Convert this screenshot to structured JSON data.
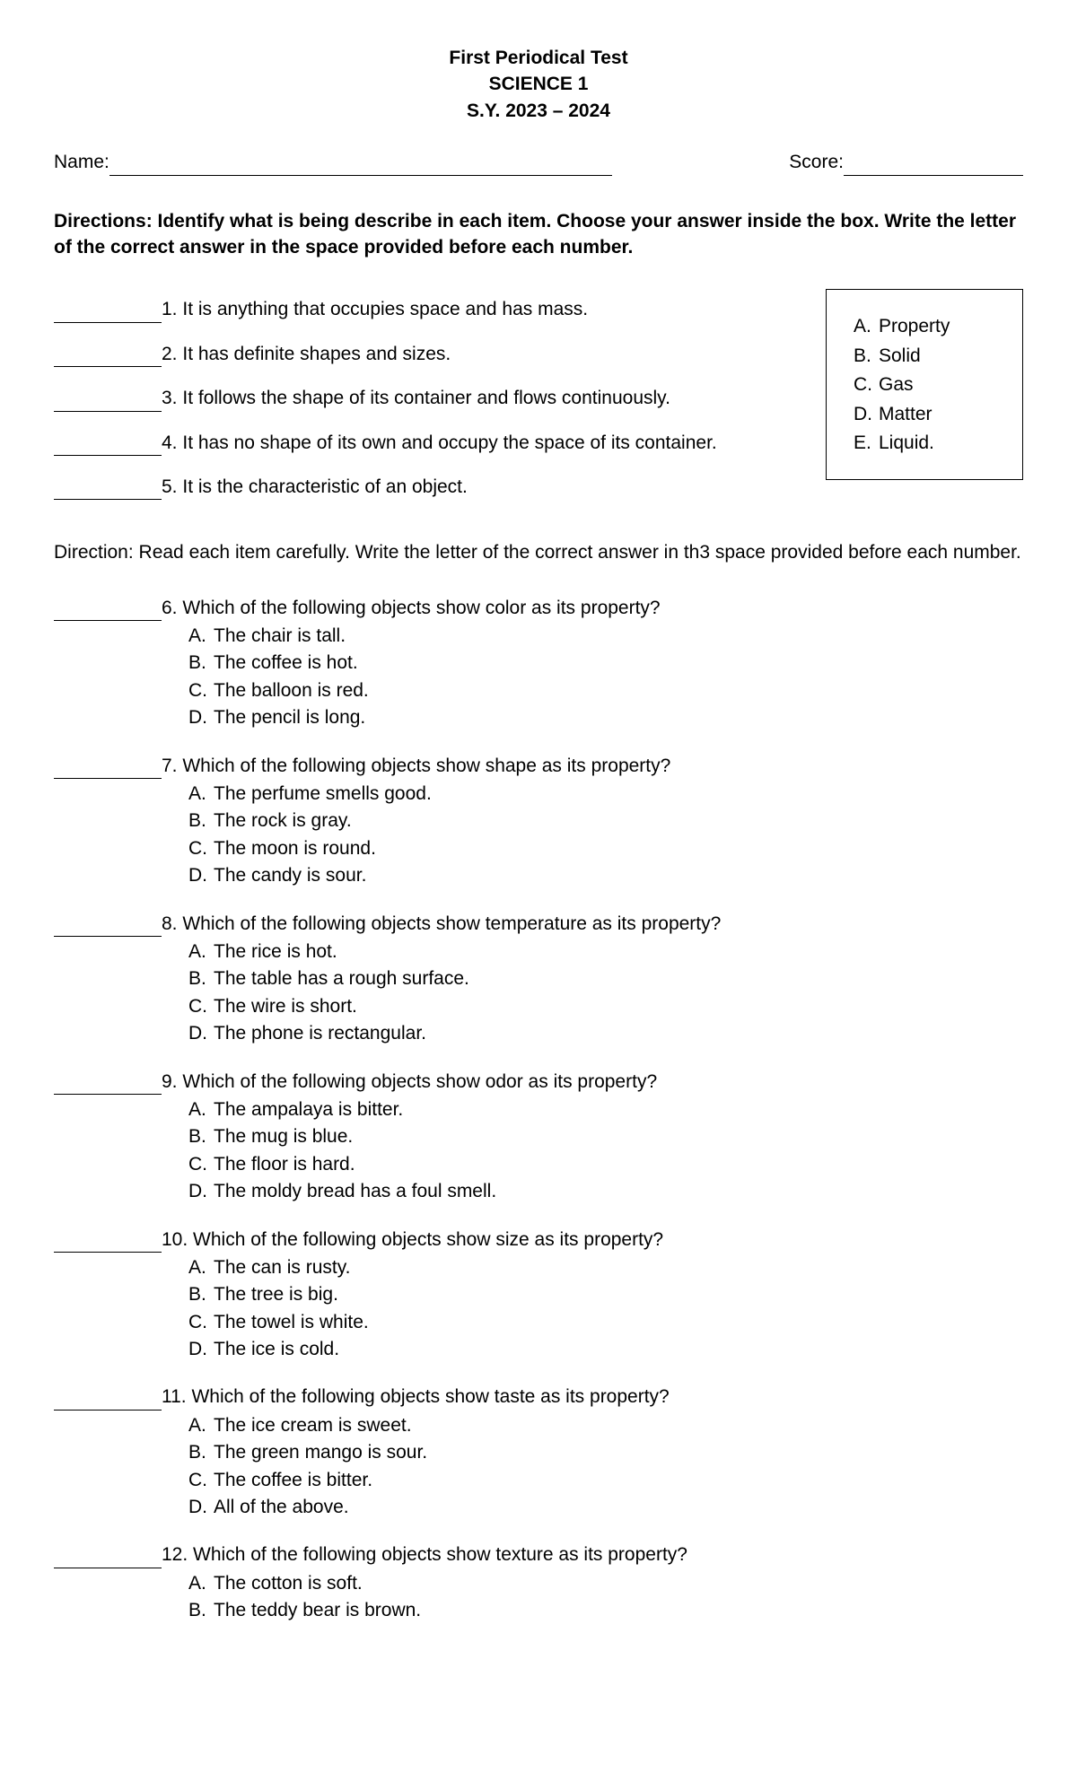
{
  "header": {
    "line1": "First Periodical Test",
    "line2": "SCIENCE 1",
    "line3": "S.Y. 2023 – 2024"
  },
  "labels": {
    "name": "Name:",
    "score": "Score:"
  },
  "directions1": "Directions: Identify what is being describe in each item. Choose your answer inside the box. Write the letter of the correct answer in the space provided before each number.",
  "section1": [
    {
      "num": "1.",
      "text": "It is anything that occupies space and has mass."
    },
    {
      "num": "2.",
      "text": "It has definite shapes and sizes."
    },
    {
      "num": "3.",
      "text": "It follows the shape of its container and flows continuously."
    },
    {
      "num": "4.",
      "text": "It has no shape of its own and occupy the space of its container."
    },
    {
      "num": "5.",
      "text": "It is the characteristic of an object."
    }
  ],
  "answerBox": [
    {
      "letter": "A.",
      "text": "Property"
    },
    {
      "letter": "B.",
      "text": "Solid"
    },
    {
      "letter": "C.",
      "text": "Gas"
    },
    {
      "letter": "D.",
      "text": "Matter"
    },
    {
      "letter": "E.",
      "text": "Liquid."
    }
  ],
  "directions2": "Direction: Read each item carefully. Write the letter of the correct answer in th3 space provided before each number.",
  "section2": [
    {
      "num": "6.",
      "q": "Which of the following objects show color as its property?",
      "opts": [
        {
          "letter": "A.",
          "text": "The chair is tall."
        },
        {
          "letter": "B.",
          "text": "The coffee is hot."
        },
        {
          "letter": "C.",
          "text": "The balloon is red."
        },
        {
          "letter": "D.",
          "text": "The pencil is long."
        }
      ]
    },
    {
      "num": "7.",
      "q": "Which of the following objects show shape as its property?",
      "opts": [
        {
          "letter": "A.",
          "text": "The perfume smells good."
        },
        {
          "letter": "B.",
          "text": "The rock is gray."
        },
        {
          "letter": "C.",
          "text": "The moon is round."
        },
        {
          "letter": "D.",
          "text": "The candy is sour."
        }
      ]
    },
    {
      "num": "8.",
      "q": "Which of the following objects show temperature as its property?",
      "opts": [
        {
          "letter": "A.",
          "text": "The rice is hot."
        },
        {
          "letter": "B.",
          "text": "The table has a rough surface."
        },
        {
          "letter": "C.",
          "text": "The wire is short."
        },
        {
          "letter": "D.",
          "text": "The phone is rectangular."
        }
      ]
    },
    {
      "num": "9.",
      "q": "Which of the following objects show odor as its property?",
      "opts": [
        {
          "letter": "A.",
          "text": "The ampalaya is bitter."
        },
        {
          "letter": "B.",
          "text": "The mug is blue."
        },
        {
          "letter": "C.",
          "text": "The floor is hard."
        },
        {
          "letter": "D.",
          "text": "The moldy bread has a foul smell."
        }
      ]
    },
    {
      "num": "10.",
      "q": "Which of the following objects show size as its property?",
      "opts": [
        {
          "letter": "A.",
          "text": "The can is rusty."
        },
        {
          "letter": "B.",
          "text": "The tree is big."
        },
        {
          "letter": "C.",
          "text": "The towel is white."
        },
        {
          "letter": "D.",
          "text": "The ice is cold."
        }
      ]
    },
    {
      "num": "11.",
      "q": "Which of the following objects show taste as its property?",
      "opts": [
        {
          "letter": "A.",
          "text": "The ice cream is sweet."
        },
        {
          "letter": "B.",
          "text": "The green mango is sour."
        },
        {
          "letter": "C.",
          "text": "The coffee is bitter."
        },
        {
          "letter": "D.",
          "text": "All of the above."
        }
      ]
    },
    {
      "num": "12.",
      "q": "Which of the following objects show texture as its property?",
      "opts": [
        {
          "letter": "A.",
          "text": "The cotton is soft."
        },
        {
          "letter": "B.",
          "text": "The teddy bear is brown."
        }
      ]
    }
  ]
}
